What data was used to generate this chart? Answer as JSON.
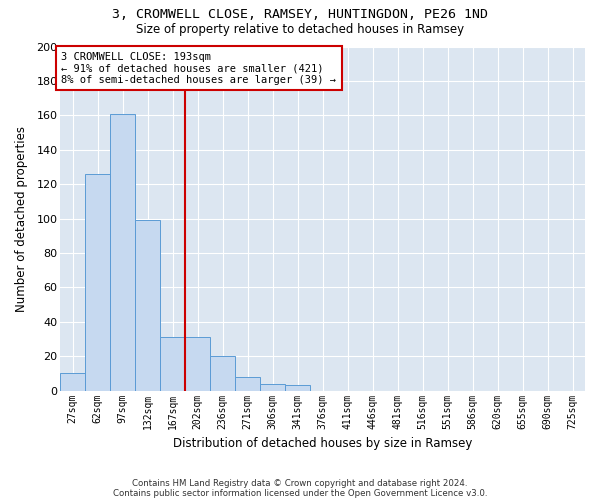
{
  "title1": "3, CROMWELL CLOSE, RAMSEY, HUNTINGDON, PE26 1ND",
  "title2": "Size of property relative to detached houses in Ramsey",
  "xlabel": "Distribution of detached houses by size in Ramsey",
  "ylabel": "Number of detached properties",
  "annotation_line1": "3 CROMWELL CLOSE: 193sqm",
  "annotation_line2": "← 91% of detached houses are smaller (421)",
  "annotation_line3": "8% of semi-detached houses are larger (39) →",
  "footer1": "Contains HM Land Registry data © Crown copyright and database right 2024.",
  "footer2": "Contains public sector information licensed under the Open Government Licence v3.0.",
  "categories": [
    "27sqm",
    "62sqm",
    "97sqm",
    "132sqm",
    "167sqm",
    "202sqm",
    "236sqm",
    "271sqm",
    "306sqm",
    "341sqm",
    "376sqm",
    "411sqm",
    "446sqm",
    "481sqm",
    "516sqm",
    "551sqm",
    "586sqm",
    "620sqm",
    "655sqm",
    "690sqm",
    "725sqm"
  ],
  "values": [
    10,
    126,
    161,
    99,
    31,
    31,
    20,
    8,
    4,
    3,
    0,
    0,
    0,
    0,
    0,
    0,
    0,
    0,
    0,
    0,
    0
  ],
  "bar_color": "#c6d9f0",
  "bar_edge_color": "#5b9bd5",
  "vline_color": "#cc0000",
  "vline_x": 4.5,
  "annotation_box_color": "#cc0000",
  "background_color": "#dce6f1",
  "ylim": [
    0,
    200
  ],
  "yticks": [
    0,
    20,
    40,
    60,
    80,
    100,
    120,
    140,
    160,
    180,
    200
  ]
}
